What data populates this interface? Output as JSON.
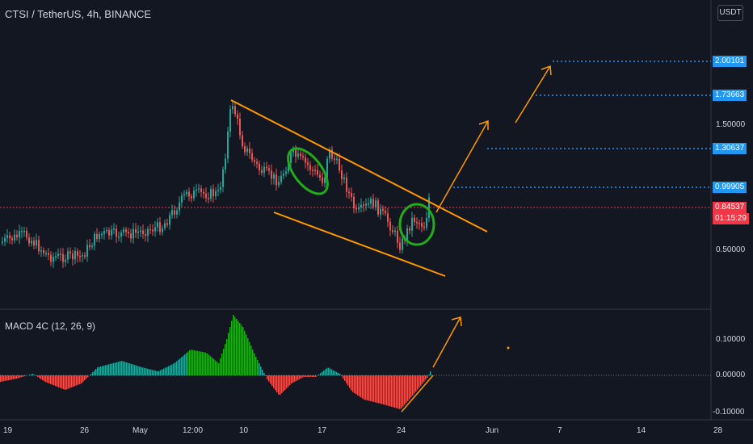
{
  "header": {
    "title": "CTSI / TetherUS, 4h, BINANCE",
    "currency_button": "USDT"
  },
  "price_axis": {
    "labels": [
      "1.50000",
      "0.50000"
    ],
    "targets": [
      "2.00101",
      "1.73663",
      "1.30637",
      "0.99905"
    ],
    "current_price": "0.84537",
    "countdown": "01:15:29"
  },
  "macd": {
    "title": "MACD 4C (12, 26, 9)",
    "axis_labels": [
      "0.10000",
      "0.00000",
      "-0.10000"
    ]
  },
  "time_axis": {
    "labels": [
      "19",
      "26",
      "May",
      "12:00",
      "10",
      "17",
      "24",
      "Jun",
      "7",
      "14",
      "28"
    ]
  },
  "colors": {
    "background": "#131722",
    "up": "#26a69a",
    "down": "#ef5350",
    "drawing": "#ff9800",
    "target_line": "#2196f3",
    "highlight": "#22ab1b"
  }
}
